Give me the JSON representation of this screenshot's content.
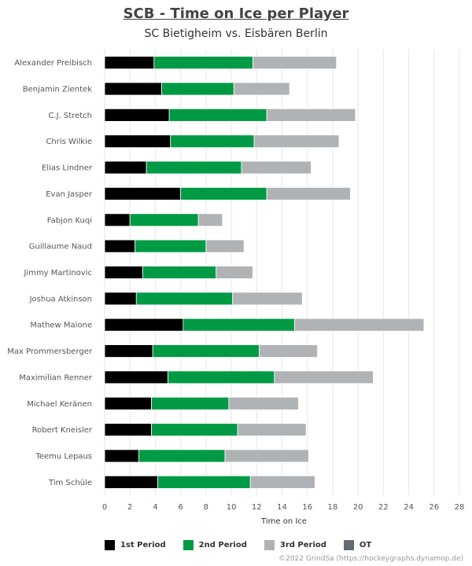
{
  "chart_data": {
    "type": "bar",
    "orientation": "horizontal",
    "stacked": true,
    "title": "SCB - Time on Ice per Player",
    "subtitle": "SC Bietigheim vs. Eisbären Berlin",
    "xlabel": "Time on Ice",
    "ylabel": "",
    "xlim": [
      0,
      28
    ],
    "xticks": [
      0,
      2,
      4,
      6,
      8,
      10,
      12,
      14,
      16,
      18,
      20,
      22,
      24,
      26,
      28
    ],
    "grid": true,
    "legend_position": "bottom",
    "categories": [
      "Alexander Preibisch",
      "Benjamin Zientek",
      "C.J. Stretch",
      "Chris Wilkie",
      "Elias Lindner",
      "Evan Jasper",
      "Fabjon Kuqi",
      "Guillaume Naud",
      "Jimmy Martinovic",
      "Joshua Atkinson",
      "Mathew Maione",
      "Max Prommersberger",
      "Maximilian Renner",
      "Michael Keränen",
      "Robert Kneisler",
      "Teemu Lepaus",
      "Tim Schüle"
    ],
    "series": [
      {
        "name": "1st Period",
        "color": "#000000",
        "values": [
          3.9,
          4.5,
          5.1,
          5.2,
          3.3,
          6.0,
          2.0,
          2.4,
          3.0,
          2.5,
          6.2,
          3.8,
          5.0,
          3.7,
          3.7,
          2.7,
          4.2
        ]
      },
      {
        "name": "2nd Period",
        "color": "#009a44",
        "values": [
          7.8,
          5.7,
          7.7,
          6.6,
          7.5,
          6.8,
          5.4,
          5.6,
          5.8,
          7.6,
          8.8,
          8.4,
          8.4,
          6.1,
          6.8,
          6.8,
          7.3
        ]
      },
      {
        "name": "3rd Period",
        "color": "#b0b3b5",
        "values": [
          6.6,
          4.4,
          7.0,
          6.7,
          5.5,
          6.6,
          1.9,
          3.0,
          2.9,
          5.5,
          10.2,
          4.6,
          7.8,
          5.5,
          5.4,
          6.6,
          5.1
        ]
      },
      {
        "name": "OT",
        "color": "#636b73",
        "values": [
          0,
          0,
          0,
          0,
          0,
          0,
          0,
          0,
          0,
          0,
          0,
          0,
          0,
          0,
          0,
          0,
          0
        ]
      }
    ]
  },
  "credit": "©2022 GrindSa (https://hockeygraphs.dynamop.de)"
}
